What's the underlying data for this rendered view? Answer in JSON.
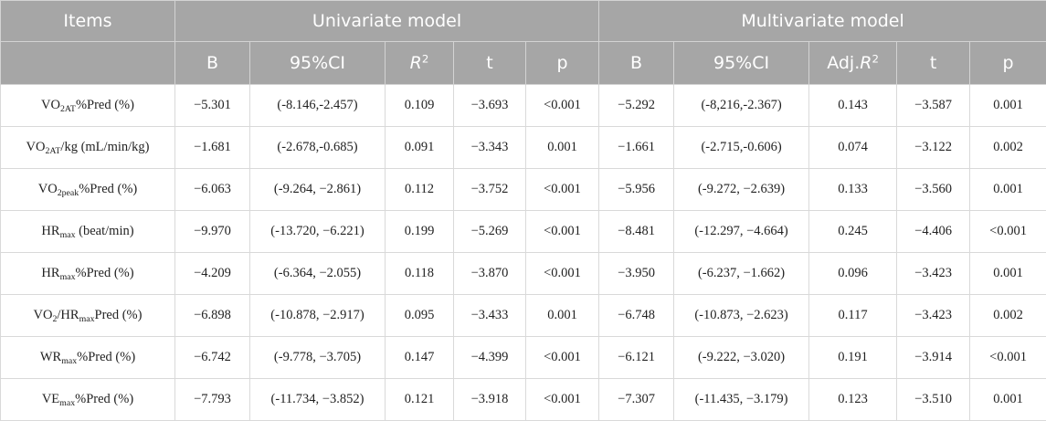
{
  "header": {
    "items": "Items",
    "univariate": "Univariate model",
    "multivariate": "Multivariate model",
    "uni_cols": {
      "b": "B",
      "ci": "95%CI",
      "r2_base": "R",
      "r2_sup": "2",
      "t": "t",
      "p": "p"
    },
    "multi_cols": {
      "b": "B",
      "ci": "95%CI",
      "adj_prefix": "Adj.",
      "r2_base": "R",
      "r2_sup": "2",
      "t": "t",
      "p": "p"
    }
  },
  "rows": [
    {
      "item": {
        "a": "VO",
        "s1": "2AT",
        "b": "%Pred (%)",
        "s2": "",
        "c": ""
      },
      "uni": {
        "b": "−5.301",
        "ci": "(-8.146,-2.457)",
        "r2": "0.109",
        "t": "−3.693",
        "p": "<0.001"
      },
      "multi": {
        "b": "−5.292",
        "ci": "(-8,216,-2.367)",
        "r2": "0.143",
        "t": "−3.587",
        "p": "0.001"
      }
    },
    {
      "item": {
        "a": "VO",
        "s1": "2AT",
        "b": "/kg (mL/min/kg)",
        "s2": "",
        "c": ""
      },
      "uni": {
        "b": "−1.681",
        "ci": "(-2.678,-0.685)",
        "r2": "0.091",
        "t": "−3.343",
        "p": "0.001"
      },
      "multi": {
        "b": "−1.661",
        "ci": "(-2.715,-0.606)",
        "r2": "0.074",
        "t": "−3.122",
        "p": "0.002"
      }
    },
    {
      "item": {
        "a": "VO",
        "s1": "2peak",
        "b": "%Pred (%)",
        "s2": "",
        "c": ""
      },
      "uni": {
        "b": "−6.063",
        "ci": "(-9.264, −2.861)",
        "r2": "0.112",
        "t": "−3.752",
        "p": "<0.001"
      },
      "multi": {
        "b": "−5.956",
        "ci": "(-9.272, −2.639)",
        "r2": "0.133",
        "t": "−3.560",
        "p": "0.001"
      }
    },
    {
      "item": {
        "a": "HR",
        "s1": "max",
        "b": " (beat/min)",
        "s2": "",
        "c": ""
      },
      "uni": {
        "b": "−9.970",
        "ci": "(-13.720, −6.221)",
        "r2": "0.199",
        "t": "−5.269",
        "p": "<0.001"
      },
      "multi": {
        "b": "−8.481",
        "ci": "(-12.297, −4.664)",
        "r2": "0.245",
        "t": "−4.406",
        "p": "<0.001"
      }
    },
    {
      "item": {
        "a": "HR",
        "s1": "max",
        "b": "%Pred (%)",
        "s2": "",
        "c": ""
      },
      "uni": {
        "b": "−4.209",
        "ci": "(-6.364, −2.055)",
        "r2": "0.118",
        "t": "−3.870",
        "p": "<0.001"
      },
      "multi": {
        "b": "−3.950",
        "ci": "(-6.237, −1.662)",
        "r2": "0.096",
        "t": "−3.423",
        "p": "0.001"
      }
    },
    {
      "item": {
        "a": "VO",
        "s1": "2",
        "b": "/HR",
        "s2": "max",
        "c": "Pred (%)"
      },
      "uni": {
        "b": "−6.898",
        "ci": "(-10.878, −2.917)",
        "r2": "0.095",
        "t": "−3.433",
        "p": "0.001"
      },
      "multi": {
        "b": "−6.748",
        "ci": "(-10.873, −2.623)",
        "r2": "0.117",
        "t": "−3.423",
        "p": "0.002"
      }
    },
    {
      "item": {
        "a": "WR",
        "s1": "max",
        "b": "%Pred (%)",
        "s2": "",
        "c": ""
      },
      "uni": {
        "b": "−6.742",
        "ci": "(-9.778, −3.705)",
        "r2": "0.147",
        "t": "−4.399",
        "p": "<0.001"
      },
      "multi": {
        "b": "−6.121",
        "ci": "(-9.222, −3.020)",
        "r2": "0.191",
        "t": "−3.914",
        "p": "<0.001"
      }
    },
    {
      "item": {
        "a": "VE",
        "s1": "max",
        "b": "%Pred (%)",
        "s2": "",
        "c": ""
      },
      "uni": {
        "b": "−7.793",
        "ci": "(-11.734, −3.852)",
        "r2": "0.121",
        "t": "−3.918",
        "p": "<0.001"
      },
      "multi": {
        "b": "−7.307",
        "ci": "(-11.435, −3.179)",
        "r2": "0.123",
        "t": "−3.510",
        "p": "0.001"
      }
    }
  ]
}
